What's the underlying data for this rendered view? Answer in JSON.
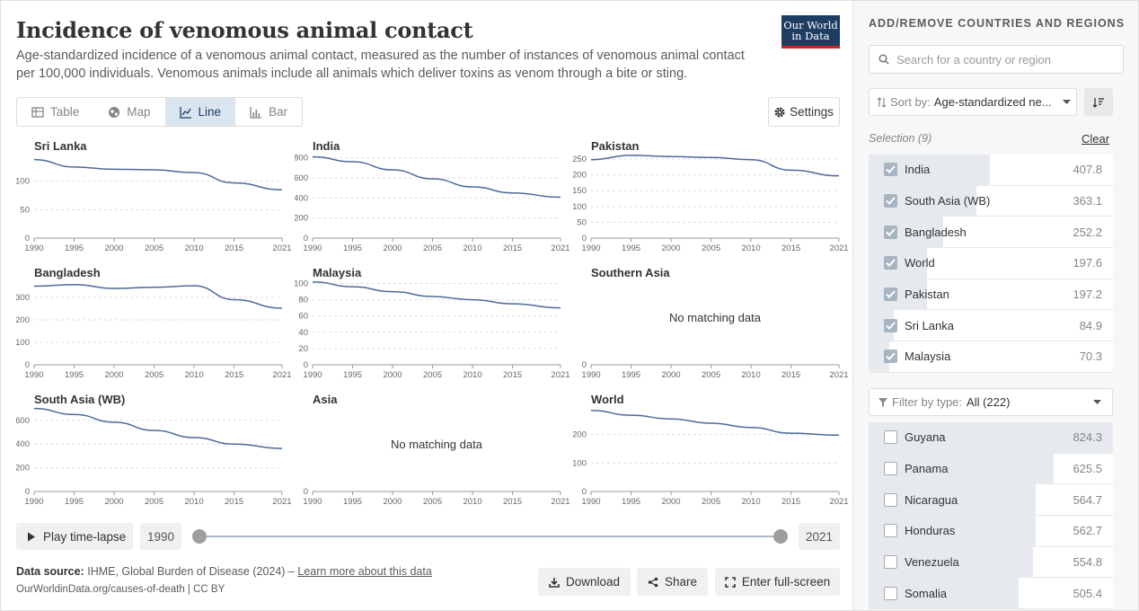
{
  "header": {
    "title": "Incidence of venomous animal contact",
    "subtitle": "Age-standardized incidence of a venomous animal contact, measured as the number of instances of venomous animal contact per 100,000 individuals. Venomous animals include all animals which deliver toxins as venom through a bite or sting.",
    "logo_line1": "Our World",
    "logo_line2": "in Data"
  },
  "tabs": [
    {
      "label": "Table",
      "icon": "table-icon"
    },
    {
      "label": "Map",
      "icon": "globe-icon"
    },
    {
      "label": "Line",
      "icon": "line-chart-icon"
    },
    {
      "label": "Bar",
      "icon": "bar-chart-icon"
    }
  ],
  "active_tab": "Line",
  "settings_label": "Settings",
  "no_data_label": "No matching data",
  "chart_data": [
    {
      "type": "line",
      "title": "Sri Lanka",
      "x": [
        1990,
        1995,
        2000,
        2005,
        2010,
        2015,
        2021
      ],
      "values": [
        138,
        125,
        121,
        120,
        115,
        97,
        85
      ],
      "ylim": [
        0,
        150
      ],
      "yticks": [
        0,
        50,
        100
      ]
    },
    {
      "type": "line",
      "title": "India",
      "x": [
        1990,
        1995,
        2000,
        2005,
        2010,
        2015,
        2021
      ],
      "values": [
        810,
        760,
        680,
        590,
        510,
        450,
        408
      ],
      "ylim": [
        0,
        850
      ],
      "yticks": [
        0,
        200,
        400,
        600,
        800
      ]
    },
    {
      "type": "line",
      "title": "Pakistan",
      "x": [
        1990,
        1995,
        2000,
        2005,
        2010,
        2015,
        2021
      ],
      "values": [
        248,
        262,
        258,
        255,
        248,
        215,
        197
      ],
      "ylim": [
        0,
        270
      ],
      "yticks": [
        0,
        50,
        100,
        150,
        200,
        250
      ]
    },
    {
      "type": "line",
      "title": "Bangladesh",
      "x": [
        1990,
        1995,
        2000,
        2005,
        2010,
        2015,
        2021
      ],
      "values": [
        350,
        357,
        340,
        345,
        352,
        290,
        252
      ],
      "ylim": [
        0,
        380
      ],
      "yticks": [
        0,
        100,
        200,
        300
      ]
    },
    {
      "type": "line",
      "title": "Malaysia",
      "x": [
        1990,
        1995,
        2000,
        2005,
        2010,
        2015,
        2021
      ],
      "values": [
        102,
        96,
        90,
        84,
        80,
        75,
        70
      ],
      "ylim": [
        0,
        105
      ],
      "yticks": [
        0,
        20,
        40,
        60,
        80,
        100
      ]
    },
    {
      "type": "line",
      "title": "Southern Asia",
      "x": [],
      "values": [],
      "ylim": [
        0,
        1
      ],
      "yticks": [
        0
      ],
      "no_data": true
    },
    {
      "type": "line",
      "title": "South Asia (WB)",
      "x": [
        1990,
        1995,
        2000,
        2005,
        2010,
        2015,
        2021
      ],
      "values": [
        700,
        650,
        585,
        515,
        455,
        400,
        363
      ],
      "ylim": [
        0,
        720
      ],
      "yticks": [
        0,
        200,
        400,
        600
      ]
    },
    {
      "type": "line",
      "title": "Asia",
      "x": [],
      "values": [],
      "ylim": [
        0,
        1
      ],
      "yticks": [
        0
      ],
      "no_data": true
    },
    {
      "type": "line",
      "title": "World",
      "x": [
        1990,
        1995,
        2000,
        2005,
        2010,
        2015,
        2021
      ],
      "values": [
        285,
        268,
        255,
        240,
        225,
        205,
        198
      ],
      "ylim": [
        0,
        300
      ],
      "yticks": [
        0,
        100,
        200
      ]
    }
  ],
  "xticks": [
    1990,
    1995,
    2000,
    2005,
    2010,
    2015,
    2021
  ],
  "timeline": {
    "play_label": "Play time-lapse",
    "start_year": "1990",
    "end_year": "2021"
  },
  "footer": {
    "source_label": "Data source:",
    "source_text": "IHME, Global Burden of Disease (2024) –",
    "learn_more": "Learn more about this data",
    "url": "OurWorldinData.org/causes-of-death | CC BY",
    "download": "Download",
    "share": "Share",
    "fullscreen": "Enter full-screen"
  },
  "sidebar": {
    "heading": "ADD/REMOVE COUNTRIES AND REGIONS",
    "search_placeholder": "Search for a country or region",
    "sort_label": "Sort by:",
    "sort_value": "Age-standardized ne...",
    "selection_label": "Selection (9)",
    "clear_label": "Clear",
    "selected": [
      {
        "name": "India",
        "value": "407.8",
        "fraction": 0.495
      },
      {
        "name": "South Asia (WB)",
        "value": "363.1",
        "fraction": 0.44
      },
      {
        "name": "Bangladesh",
        "value": "252.2",
        "fraction": 0.306
      },
      {
        "name": "World",
        "value": "197.6",
        "fraction": 0.24
      },
      {
        "name": "Pakistan",
        "value": "197.2",
        "fraction": 0.239
      },
      {
        "name": "Sri Lanka",
        "value": "84.9",
        "fraction": 0.103
      },
      {
        "name": "Malaysia",
        "value": "70.3",
        "fraction": 0.085
      }
    ],
    "filter_label": "Filter by type:",
    "filter_value": "All (222)",
    "others": [
      {
        "name": "Guyana",
        "value": "824.3",
        "fraction": 1.0
      },
      {
        "name": "Panama",
        "value": "625.5",
        "fraction": 0.759
      },
      {
        "name": "Nicaragua",
        "value": "564.7",
        "fraction": 0.685
      },
      {
        "name": "Honduras",
        "value": "562.7",
        "fraction": 0.683
      },
      {
        "name": "Venezuela",
        "value": "554.8",
        "fraction": 0.673
      },
      {
        "name": "Somalia",
        "value": "505.4",
        "fraction": 0.613
      }
    ]
  }
}
